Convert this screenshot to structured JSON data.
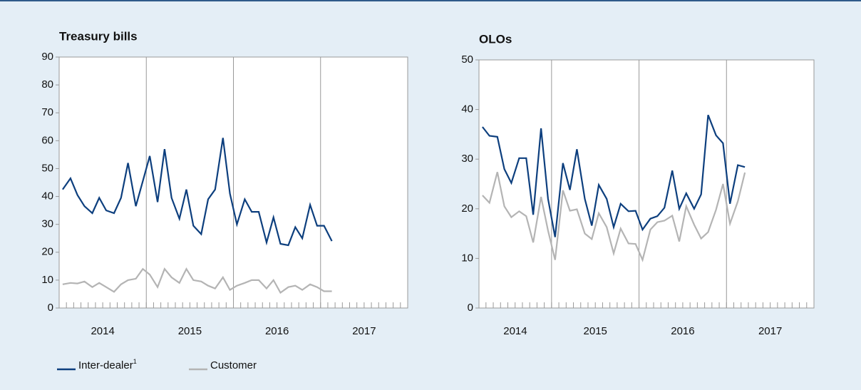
{
  "chart_data": [
    {
      "type": "line",
      "title": "Treasury bills",
      "x": [
        2014.04,
        2014.13,
        2014.21,
        2014.29,
        2014.38,
        2014.46,
        2014.54,
        2014.63,
        2014.71,
        2014.79,
        2014.88,
        2014.96,
        2015.04,
        2015.13,
        2015.21,
        2015.29,
        2015.38,
        2015.46,
        2015.54,
        2015.63,
        2015.71,
        2015.79,
        2015.88,
        2015.96,
        2016.04,
        2016.13,
        2016.21,
        2016.29,
        2016.38,
        2016.46,
        2016.54,
        2016.63,
        2016.71,
        2016.79,
        2016.88,
        2016.96,
        2017.04,
        2017.13
      ],
      "series": [
        {
          "name": "Inter-dealer",
          "note_marker": "1",
          "color": "#0d3f7e",
          "values": [
            42.5,
            46.5,
            40.5,
            36.5,
            34,
            39.5,
            35,
            34,
            39.5,
            52,
            36.5,
            45.5,
            54.5,
            38,
            57,
            39.5,
            32,
            42.5,
            29.5,
            26.5,
            39,
            42.5,
            61,
            41,
            30,
            39,
            34.5,
            34.5,
            23.5,
            32.5,
            23,
            22.5,
            29,
            25,
            37,
            29.5,
            29.5,
            24
          ]
        },
        {
          "name": "Customer",
          "color": "#b4b4b4",
          "values": [
            8.5,
            9,
            8.8,
            9.5,
            7.5,
            9,
            7.5,
            5.8,
            8.5,
            10,
            10.5,
            14,
            12,
            7.5,
            14,
            11,
            9,
            14,
            10,
            9.5,
            8,
            7,
            11,
            6.5,
            8,
            9,
            10,
            10,
            7,
            10,
            5.5,
            7.5,
            8,
            6.5,
            8.5,
            7.5,
            6,
            6
          ]
        }
      ],
      "xlim": [
        2014,
        2018
      ],
      "xticks": [
        {
          "value": 2014.5,
          "label": "2014"
        },
        {
          "value": 2015.5,
          "label": "2015"
        },
        {
          "value": 2016.5,
          "label": "2016"
        },
        {
          "value": 2017.5,
          "label": "2017"
        }
      ],
      "xgrid": [
        2015,
        2016,
        2017
      ],
      "ylim": [
        0,
        90
      ],
      "yticks": [
        0,
        10,
        20,
        30,
        40,
        50,
        60,
        70,
        80,
        90
      ]
    },
    {
      "type": "line",
      "title": "OLOs",
      "x": [
        2014.21,
        2014.29,
        2014.38,
        2014.46,
        2014.54,
        2014.63,
        2014.71,
        2014.79,
        2014.88,
        2014.96,
        2015.04,
        2015.13,
        2015.21,
        2015.29,
        2015.38,
        2015.46,
        2015.54,
        2015.63,
        2015.71,
        2015.79,
        2015.88,
        2015.96,
        2016.04,
        2016.13,
        2016.21,
        2016.29,
        2016.38,
        2016.46,
        2016.54,
        2016.63,
        2016.71,
        2016.79,
        2016.88,
        2016.96,
        2017.04,
        2017.13,
        2017.21
      ],
      "series": [
        {
          "name": "Inter-dealer",
          "color": "#0d3f7e",
          "values": [
            36.5,
            34.7,
            34.5,
            28,
            25.2,
            30.2,
            30.2,
            18.8,
            36.2,
            22,
            14.3,
            29.2,
            23.8,
            32,
            22,
            16.6,
            24.8,
            22,
            16.3,
            21,
            19.5,
            19.6,
            15.8,
            18,
            18.5,
            20.2,
            27.7,
            20,
            23.1,
            20,
            22.9,
            38.9,
            34.8,
            33.2,
            21,
            28.8,
            28.4
          ]
        },
        {
          "name": "Customer",
          "color": "#b4b4b4",
          "values": [
            22.7,
            21.2,
            27.4,
            20.5,
            18.3,
            19.5,
            18.5,
            13.2,
            22.4,
            15.6,
            9.7,
            23.7,
            19.6,
            19.9,
            15,
            13.9,
            19.1,
            16.3,
            11,
            16,
            13,
            12.9,
            9.7,
            15.8,
            17.3,
            17.6,
            18.6,
            13.4,
            20.5,
            16.8,
            14,
            15.3,
            19.8,
            25,
            17,
            21.5,
            27.3
          ]
        }
      ],
      "xlim": [
        2014.17,
        2018
      ],
      "xticks": [
        {
          "value": 2014.585,
          "label": "2014"
        },
        {
          "value": 2015.5,
          "label": "2015"
        },
        {
          "value": 2016.5,
          "label": "2016"
        },
        {
          "value": 2017.5,
          "label": "2017"
        }
      ],
      "xgrid": [
        2015,
        2016,
        2017
      ],
      "ylim": [
        0,
        50
      ],
      "yticks": [
        0,
        10,
        20,
        30,
        40,
        50
      ]
    }
  ]
}
